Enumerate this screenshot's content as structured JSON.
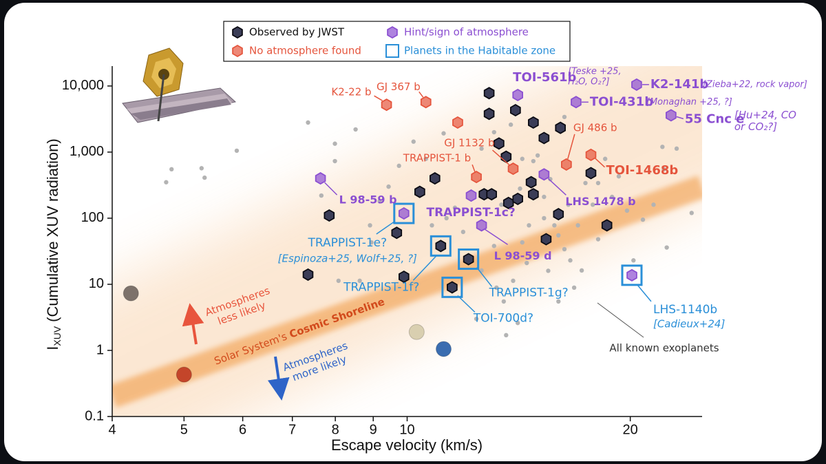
{
  "chart_data": {
    "type": "scatter",
    "x_label": "Escape velocity (km/s)",
    "y_label_symbol": "I",
    "y_label_subscript": "XUV",
    "y_label": "(Cumulative XUV radiation)",
    "x_scale": "log",
    "y_scale": "log",
    "xlim": [
      4,
      25
    ],
    "ylim": [
      0.1,
      20000
    ],
    "xticks": [
      4,
      5,
      6,
      7,
      8,
      9,
      10,
      20
    ],
    "yticks": [
      0.1,
      1,
      10,
      100,
      {
        "value": 1000,
        "label": "1,000"
      },
      {
        "value": 10000,
        "label": "10,000"
      }
    ],
    "legend": "top",
    "series": [
      {
        "name": "All known exoplanets",
        "color": "#b3b3b3",
        "marker": "dot",
        "x": [
          4.73,
          4.81,
          5.28,
          5.33,
          5.89,
          7.35,
          7.99,
          7.99,
          8.52,
          7.66,
          8.95,
          8.08,
          8.63,
          8.91,
          9.18,
          9.44,
          9.75,
          10.2,
          10.6,
          11.2,
          11.3,
          11.6,
          11.9,
          10.8,
          12.6,
          13.1,
          13.5,
          13.6,
          13.9,
          14.1,
          14.5,
          14.6,
          14.8,
          15.0,
          15.3,
          15.6,
          15.8,
          16.0,
          16.3,
          16.5,
          16.6,
          16.8,
          17.2,
          17.4,
          17.8,
          18.1,
          18.5,
          18.9,
          19.3,
          19.8,
          20.2,
          20.8,
          21.5,
          22.1,
          22.4,
          22.2,
          23.1,
          24.2,
          12.6,
          13.1,
          13.8,
          14.3,
          14.3,
          16.3,
          16.0,
          13.2,
          13.4,
          15.5,
          14.2,
          17.0,
          15.3,
          18.1,
          12.4
        ],
        "y": [
          350,
          550,
          570,
          410,
          1050,
          2800,
          1340,
          730,
          2200,
          220,
          43,
          11.3,
          11.3,
          78,
          180,
          300,
          620,
          1440,
          790,
          1920,
          100,
          144,
          62,
          78,
          16.2,
          38,
          5.5,
          1.7,
          11.3,
          2.6,
          21,
          78,
          730,
          890,
          100,
          390,
          78,
          55,
          34,
          160,
          23,
          8.9,
          16.2,
          340,
          160,
          48,
          790,
          210,
          430,
          130,
          23,
          95,
          160,
          1200,
          36,
          550,
          1130,
          120,
          1130,
          2000,
          2600,
          790,
          43,
          3400,
          5.5,
          8.9,
          160,
          16,
          280,
          78,
          210,
          340,
          3.0
        ]
      },
      {
        "name": "Observed by JWST",
        "color": "#3b3d57",
        "marker": "hexagon",
        "x": [
          7.35,
          7.85,
          9.68,
          9.9,
          10.4,
          10.9,
          11.1,
          12.1,
          11.5,
          12.7,
          13.0,
          12.9,
          12.9,
          13.3,
          13.6,
          13.7,
          14.1,
          14.0,
          14.8,
          14.7,
          14.8,
          15.3,
          15.4,
          16.0,
          16.1,
          17.7,
          18.6
        ],
        "y": [
          14,
          110,
          60,
          13,
          250,
          400,
          38,
          24,
          9,
          230,
          230,
          7800,
          3800,
          1350,
          850,
          170,
          196,
          4300,
          2800,
          350,
          230,
          1630,
          48,
          115,
          2330,
          480,
          78
        ],
        "labels": [
          null,
          null,
          null,
          null,
          null,
          null,
          "TRAPPIST-1f?",
          "TRAPPIST-1g?",
          "TOI-700d?",
          null,
          null,
          null,
          null,
          null,
          null,
          null,
          null,
          null,
          null,
          null,
          null,
          null,
          null,
          null,
          null,
          null,
          null
        ]
      },
      {
        "name": "No atmosphere found",
        "color": "#e5553d",
        "marker": "hexagon",
        "x": [
          9.38,
          10.6,
          11.7,
          13.9,
          12.4,
          16.4,
          17.7
        ],
        "y": [
          5200,
          5700,
          2800,
          560,
          420,
          650,
          910
        ],
        "labels": [
          "K2-22 b",
          "GJ 367 b",
          null,
          "GJ 1132 b",
          "TRAPPIST-1 b",
          "GJ 486 b",
          "TOI-1468b"
        ]
      },
      {
        "name": "Hint/sign of atmosphere",
        "color": "#8b4fd1",
        "marker": "hexagon",
        "x": [
          14.1,
          20.4,
          16.9,
          22.7,
          7.64,
          9.9,
          12.2,
          12.6,
          15.3,
          20.1
        ],
        "y": [
          7300,
          10500,
          5700,
          3600,
          400,
          118,
          220,
          78,
          460,
          13.7
        ],
        "labels": [
          "TOI-561b",
          "K2-141b",
          "TOI-431b",
          "55 Cnc e",
          "L 98-59 b",
          "TRAPPIST-1e?",
          "TRAPPIST-1c?",
          "L 98-59 d",
          "LHS 1478 b",
          "LHS-1140b"
        ],
        "notes": [
          [
            "[Teske +25,",
            "H₂O, O₂?]"
          ],
          [
            "[Zieba+22, rock vapor]"
          ],
          [
            "[Monaghan +25, ?]"
          ],
          [
            "[Hu+24, CO",
            "or CO₂?]"
          ],
          null,
          [
            "[Espinoza+25, Wolf+25, ?]"
          ],
          null,
          null,
          null,
          [
            "[Cadieux+24]"
          ]
        ]
      },
      {
        "name": "Planets in the Habitable zone",
        "color": "#2a8fd8",
        "marker": "square",
        "x": [
          9.9,
          11.1,
          12.1,
          11.5,
          20.1
        ],
        "y": [
          118,
          38,
          24,
          9,
          13.7
        ]
      }
    ],
    "solar_system": {
      "x": [
        4.24,
        5.0,
        10.3,
        11.2
      ],
      "y": [
        7.3,
        0.43,
        1.9,
        1.05
      ],
      "colors": [
        "#7d726b",
        "#c4452a",
        "#d9cfb0",
        "#3a6db0"
      ]
    },
    "shoreline": {
      "x": [
        4,
        25
      ],
      "y": [
        0.2,
        300
      ],
      "color": "#f0963c",
      "label_prefix": "Solar System's",
      "label_bold": "Cosmic Shoreline"
    },
    "annotations": {
      "less_likely": [
        "Atmospheres",
        "less likely"
      ],
      "more_likely": [
        "Atmospheres",
        "more likely"
      ]
    }
  }
}
